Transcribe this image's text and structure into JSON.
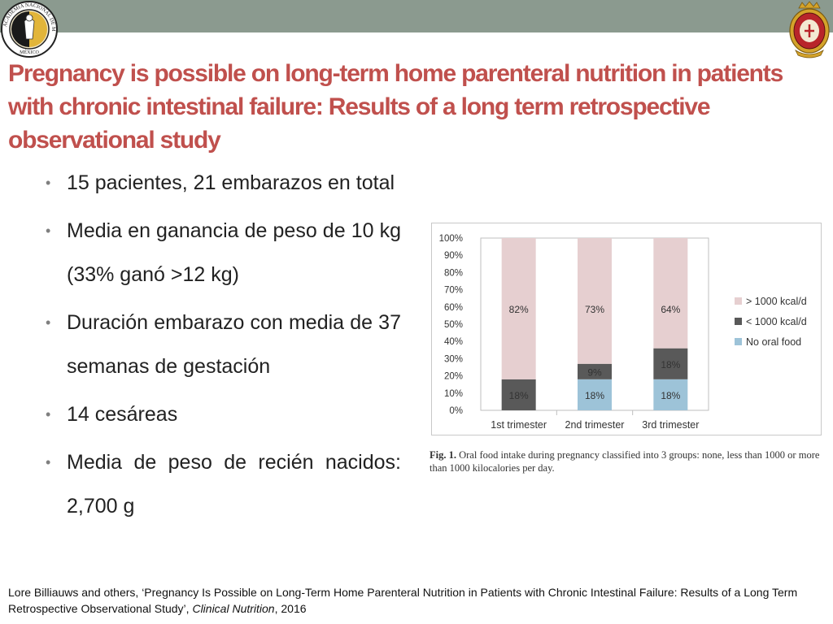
{
  "header": {
    "left_logo_name": "academia-nacional-de-medicina-mexico-seal",
    "left_logo_text": "ACADEMIA NACIONAL DE MEDICINA · MÉXICO",
    "right_logo_name": "crest-emblem",
    "bar_color": "#8b9a8f"
  },
  "slide": {
    "title": "Pregnancy is possible on long-term home parenteral nutrition in patients with chronic intestinal failure: Results of a long term retrospective observational study",
    "title_color": "#c0504d",
    "bullets": [
      "15 pacientes, 21 embarazos en total",
      "Media en ganancia de peso de 10 kg (33% ganó >12 kg)",
      "Duración embarazo con media de 37 semanas de gestación",
      "14 cesáreas",
      "Media de peso de recién nacidos: 2,700 g"
    ]
  },
  "figure": {
    "caption_label": "Fig. 1.",
    "caption_text": "Oral food intake during pregnancy classified into 3 groups: none, less than 1000 or more than 1000 kilocalories per day."
  },
  "chart_data": {
    "type": "bar",
    "stacked": true,
    "categories": [
      "1st trimester",
      "2nd trimester",
      "3rd trimester"
    ],
    "series": [
      {
        "name": "No oral food",
        "values": [
          0,
          18,
          18
        ],
        "labels": [
          "",
          "18%",
          "18%"
        ],
        "color": "#9dc3d8"
      },
      {
        "name": "< 1000 kcal/d",
        "values": [
          18,
          9,
          18
        ],
        "labels": [
          "18%",
          "9%",
          "18%"
        ],
        "color": "#595959"
      },
      {
        "name": "> 1000 kcal/d",
        "values": [
          82,
          73,
          64
        ],
        "labels": [
          "82%",
          "73%",
          "64%"
        ],
        "color": "#e6cfd0"
      }
    ],
    "legend_order": [
      "> 1000 kcal/d",
      "< 1000 kcal/d",
      "No oral food"
    ],
    "y_ticks": [
      "0%",
      "10%",
      "20%",
      "30%",
      "40%",
      "50%",
      "60%",
      "70%",
      "80%",
      "90%",
      "100%"
    ],
    "ylim": [
      0,
      100
    ],
    "legend_position": "right",
    "grid": false
  },
  "footer": {
    "citation_main": "Lore Billiauws and others, ‘Pregnancy Is Possible on Long-Term Home Parenteral Nutrition in Patients with Chronic Intestinal Failure: Results of a Long Term Retrospective Observational Study’, ",
    "journal": "Clinical Nutrition",
    "year_text": ", 2016"
  }
}
